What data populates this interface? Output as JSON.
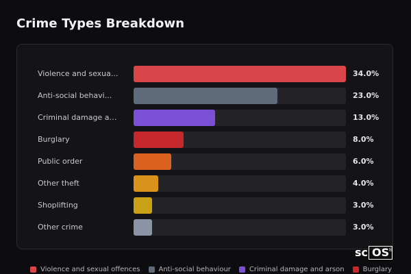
{
  "title": "Crime Types Breakdown",
  "chart_data": {
    "type": "bar",
    "orientation": "horizontal",
    "title": "Crime Types Breakdown",
    "categories": [
      "Violence and sexual offences",
      "Anti-social behaviour",
      "Criminal damage and arson",
      "Burglary",
      "Public order",
      "Other theft",
      "Shoplifting",
      "Other crime"
    ],
    "display_labels": [
      "Violence and sexua...",
      "Anti-social behavi...",
      "Criminal damage an...",
      "Burglary",
      "Public order",
      "Other theft",
      "Shoplifting",
      "Other crime"
    ],
    "values": [
      34.0,
      23.0,
      13.0,
      8.0,
      6.0,
      4.0,
      3.0,
      3.0
    ],
    "value_labels": [
      "34.0%",
      "23.0%",
      "13.0%",
      "8.0%",
      "6.0%",
      "4.0%",
      "3.0%",
      "3.0%"
    ],
    "colors": [
      "#d94548",
      "#5f6b7a",
      "#7b4fd6",
      "#c4282b",
      "#d9621e",
      "#d9921a",
      "#c9a016",
      "#8a94a6"
    ],
    "xlim": [
      0,
      34
    ],
    "grid": false,
    "legend_position": "bottom",
    "legend": [
      {
        "name": "Violence and sexual offences",
        "color": "#d94548"
      },
      {
        "name": "Anti-social behaviour",
        "color": "#5f6b7a"
      },
      {
        "name": "Criminal damage and arson",
        "color": "#7b4fd6"
      },
      {
        "name": "Burglary",
        "color": "#c4282b"
      }
    ]
  },
  "logo": {
    "text_a": "sc",
    "text_b": "OS",
    "mark": "®"
  }
}
